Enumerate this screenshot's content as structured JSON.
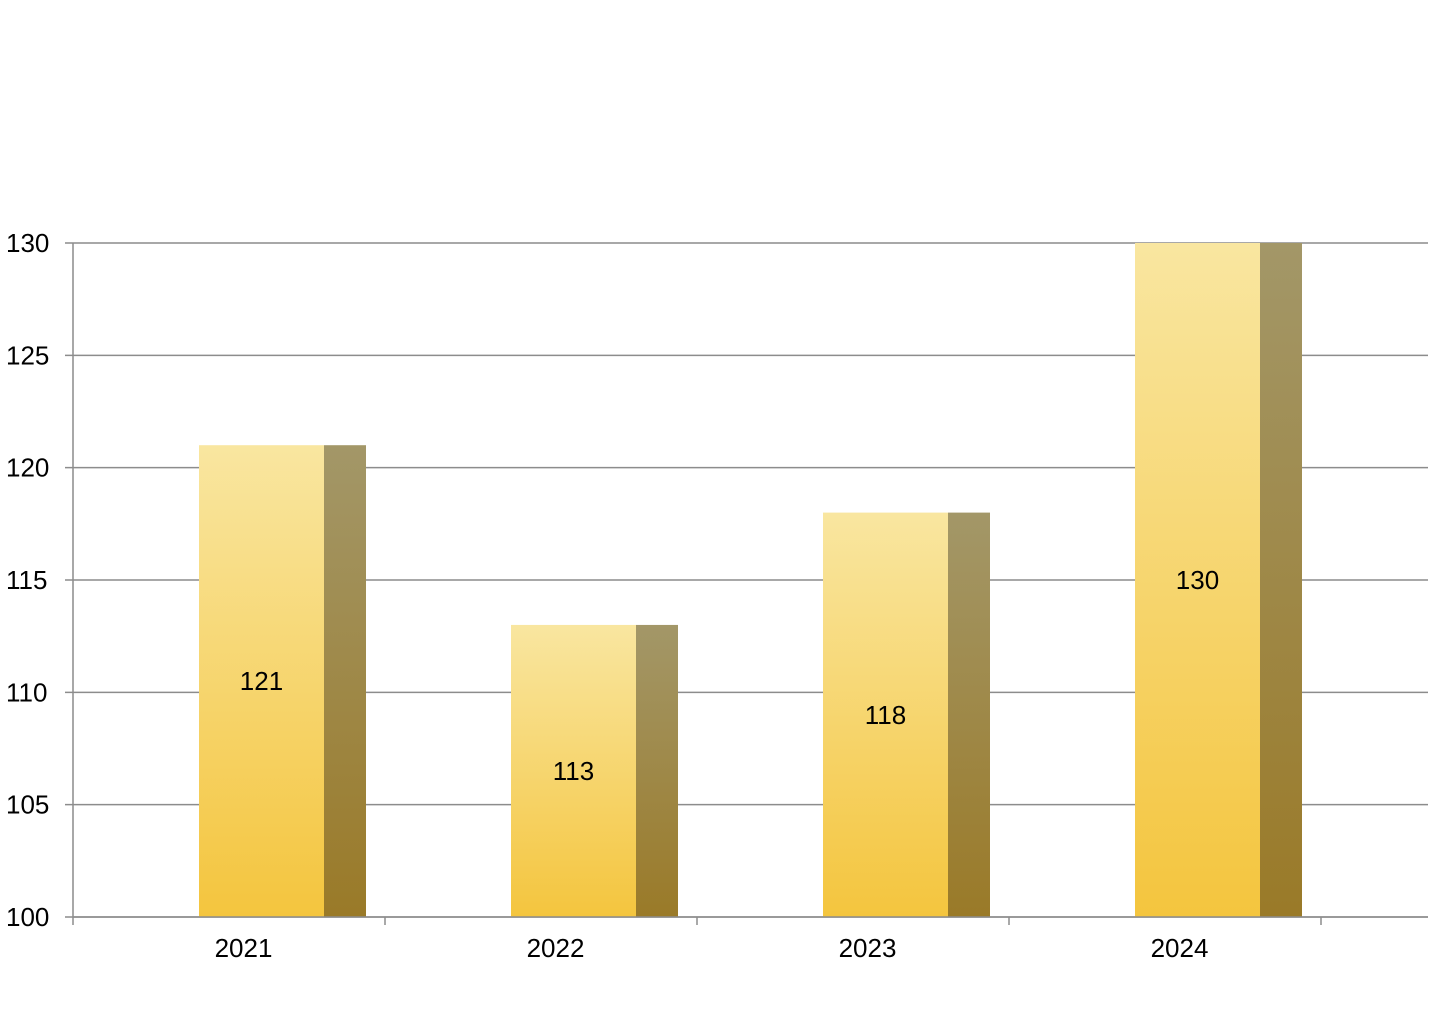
{
  "chart_data": {
    "type": "bar",
    "categories": [
      "2021",
      "2022",
      "2023",
      "2024"
    ],
    "values": [
      121,
      113,
      118,
      130
    ],
    "data_labels": [
      "121",
      "113",
      "118",
      "130"
    ],
    "title": "",
    "xlabel": "",
    "ylabel": "",
    "ylim": [
      100,
      130
    ],
    "y_ticks": [
      100,
      105,
      110,
      115,
      120,
      125,
      130
    ],
    "y_tick_labels": [
      "100",
      "105",
      "110",
      "115",
      "120",
      "125",
      "130"
    ],
    "grid": true,
    "legend": "none",
    "bar_style": "3d-extruded",
    "colors": {
      "bar_front_top": "#f9e6a0",
      "bar_front_bottom": "#f4c53e",
      "bar_side_top": "#a39768",
      "bar_side_bottom": "#9a7a28",
      "grid": "#8c8c8c",
      "text": "#000000"
    }
  }
}
